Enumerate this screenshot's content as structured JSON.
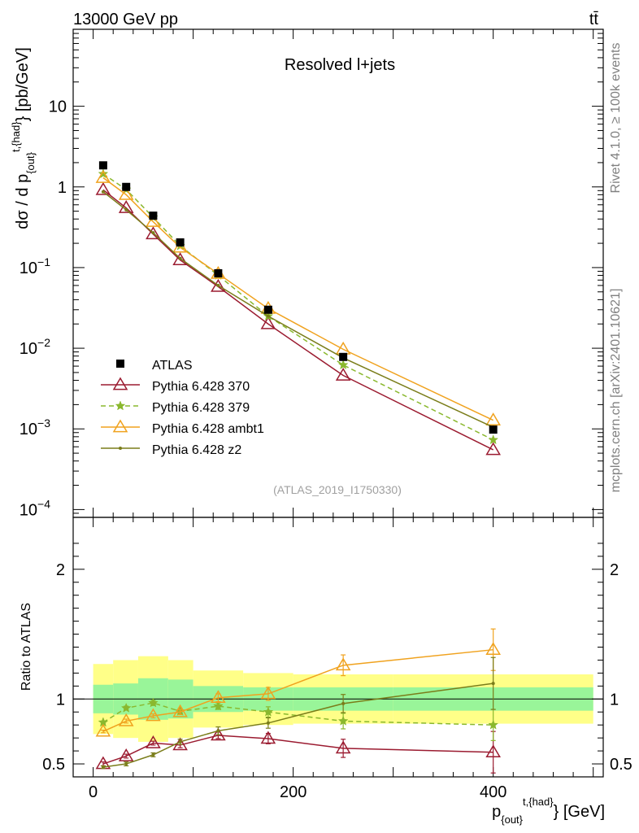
{
  "header": {
    "left": "13000 GeV pp",
    "right": "tt̄"
  },
  "side_labels": {
    "rivet": "Rivet 4.1.0, ≥ 100k events",
    "mcplots": "mcplots.cern.ch [arXiv:2401.10621]"
  },
  "chart_data": {
    "type": "line",
    "title": "Resolved l+jets",
    "analysis_id": "(ATLAS_2019_I1750330)",
    "xlabel": {
      "main": "p",
      "sub": "{out}",
      "sup": "t,{had}",
      "suffix": "} [GeV]"
    },
    "ylabel_top": {
      "prefix": "dσ / d p",
      "sub": "{out}",
      "sup": "t,{had}",
      "suffix": "} [pb/GeV]"
    },
    "ylabel_bottom": "Ratio to ATLAS",
    "xlim": [
      -20,
      510
    ],
    "ylim_top": [
      8e-05,
      90
    ],
    "ylim_bottom": [
      0.4,
      2.4
    ],
    "x_ticks": [
      0,
      200,
      400
    ],
    "y_ticks_top": [
      {
        "v": 10,
        "base": "10",
        "exp": ""
      },
      {
        "v": 1,
        "base": "1",
        "exp": ""
      },
      {
        "v": 0.1,
        "base": "10",
        "exp": "−1"
      },
      {
        "v": 0.01,
        "base": "10",
        "exp": "−2"
      },
      {
        "v": 0.001,
        "base": "10",
        "exp": "−3"
      },
      {
        "v": 0.0001,
        "base": "10",
        "exp": "−4"
      }
    ],
    "y_ticks_bottom": [
      {
        "v": 0.5,
        "label": "0.5"
      },
      {
        "v": 1,
        "label": "1"
      },
      {
        "v": 2,
        "label": "2"
      }
    ],
    "bins": [
      [
        0,
        20
      ],
      [
        20,
        45
      ],
      [
        45,
        75
      ],
      [
        75,
        100
      ],
      [
        100,
        150
      ],
      [
        150,
        200
      ],
      [
        200,
        300
      ],
      [
        300,
        500
      ]
    ],
    "x": [
      10,
      33,
      60,
      87,
      125,
      175,
      250,
      400
    ],
    "data": {
      "name": "ATLAS",
      "values": [
        1.85,
        1.0,
        0.44,
        0.205,
        0.085,
        0.03,
        0.0078,
        0.00098
      ],
      "band_green": [
        0.11,
        0.12,
        0.16,
        0.15,
        0.1,
        0.09,
        0.09,
        0.09
      ],
      "band_yellow": [
        0.27,
        0.3,
        0.33,
        0.3,
        0.22,
        0.2,
        0.19,
        0.19
      ]
    },
    "series": [
      {
        "name": "Pythia 6.428 370",
        "color": "#9b1b30",
        "dash": "",
        "marker": "triangle-open",
        "values": [
          0.92,
          0.55,
          0.26,
          0.124,
          0.058,
          0.02,
          0.0046,
          0.00055
        ],
        "ratio": [
          0.5,
          0.56,
          0.66,
          0.645,
          0.72,
          0.695,
          0.62,
          0.59
        ],
        "ratio_err": [
          0.015,
          0.015,
          0.015,
          0.02,
          0.025,
          0.04,
          0.07,
          0.16
        ]
      },
      {
        "name": "Pythia 6.428 379",
        "color": "#8ab82e",
        "dash": "6,4",
        "marker": "star",
        "values": [
          1.45,
          0.93,
          0.42,
          0.186,
          0.08,
          0.025,
          0.0062,
          0.00073
        ],
        "ratio": [
          0.82,
          0.93,
          0.97,
          0.905,
          0.945,
          0.9,
          0.83,
          0.8
        ],
        "ratio_err": [
          0.01,
          0.015,
          0.02,
          0.02,
          0.025,
          0.04,
          0.06,
          0.12
        ]
      },
      {
        "name": "Pythia 6.428 ambt1",
        "color": "#f0a21e",
        "dash": "",
        "marker": "triangle-open",
        "values": [
          1.3,
          0.8,
          0.37,
          0.178,
          0.084,
          0.031,
          0.0097,
          0.00128
        ],
        "ratio": [
          0.75,
          0.83,
          0.87,
          0.9,
          1.01,
          1.04,
          1.26,
          1.38
        ],
        "ratio_err": [
          0.01,
          0.015,
          0.015,
          0.02,
          0.03,
          0.05,
          0.08,
          0.16
        ]
      },
      {
        "name": "Pythia 6.428 z2",
        "color": "#7a7d1a",
        "dash": "",
        "marker": "dot",
        "values": [
          0.87,
          0.52,
          0.27,
          0.13,
          0.06,
          0.025,
          0.0076,
          0.00105
        ],
        "ratio": [
          0.475,
          0.5,
          0.57,
          0.67,
          0.755,
          0.815,
          0.965,
          1.12
        ],
        "ratio_err": [
          0.01,
          0.015,
          0.015,
          0.02,
          0.03,
          0.04,
          0.07,
          0.2
        ]
      }
    ]
  }
}
